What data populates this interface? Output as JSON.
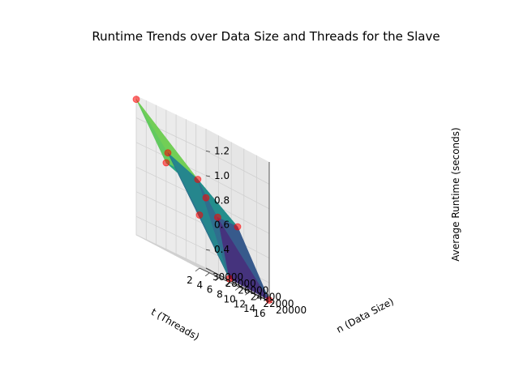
{
  "chart_data": {
    "type": "surface3d",
    "title": "Runtime Trends over Data Size and Threads for the Slave",
    "xlabel": "t (Threads)",
    "ylabel": "n (Data Size)",
    "zlabel": "Average Runtime (seconds)",
    "xlim": [
      2,
      16
    ],
    "ylim": [
      20000,
      30000
    ],
    "zlim": [
      0.25,
      1.38
    ],
    "x_ticks": [
      "2",
      "4",
      "6",
      "8",
      "10",
      "12",
      "14",
      "16"
    ],
    "y_ticks": [
      "20000",
      "22000",
      "24000",
      "26000",
      "28000",
      "30000"
    ],
    "z_ticks": [
      "0.4",
      "0.6",
      "0.8",
      "1.0",
      "1.2"
    ],
    "colormap": "viridis",
    "marker_color": "#ff0000",
    "grid": true,
    "points": [
      {
        "t": 2,
        "n": 30000,
        "runtime": 1.35
      },
      {
        "t": 8,
        "n": 30000,
        "runtime": 0.95
      },
      {
        "t": 16,
        "n": 30000,
        "runtime": 0.82
      },
      {
        "t": 2,
        "n": 25000,
        "runtime": 1.05
      },
      {
        "t": 8,
        "n": 25000,
        "runtime": 0.95
      },
      {
        "t": 16,
        "n": 25000,
        "runtime": 0.72
      },
      {
        "t": 2,
        "n": 20000,
        "runtime": 0.68
      },
      {
        "t": 8,
        "n": 20000,
        "runtime": 0.28
      },
      {
        "t": 16,
        "n": 20000,
        "runtime": 0.26
      },
      {
        "t": 12,
        "n": 25000,
        "runtime": 0.72
      }
    ],
    "triangles": [
      [
        6,
        3,
        7
      ],
      [
        3,
        4,
        7
      ],
      [
        7,
        4,
        9
      ],
      [
        7,
        9,
        8
      ],
      [
        9,
        5,
        8
      ],
      [
        4,
        5,
        9
      ],
      [
        3,
        0,
        4
      ],
      [
        0,
        1,
        4
      ],
      [
        1,
        2,
        4
      ],
      [
        4,
        2,
        5
      ]
    ]
  }
}
